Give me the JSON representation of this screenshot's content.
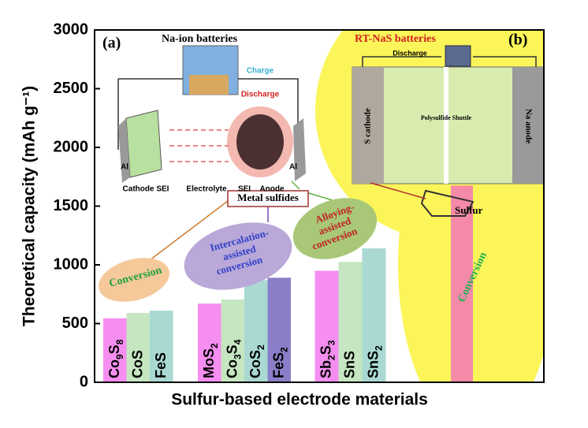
{
  "chart_data": {
    "type": "bar",
    "y_label": "Theoretical capacity (mAh g⁻¹)",
    "x_label": "Sulfur-based electrode materials",
    "categories": [
      "Co9S8",
      "CoS",
      "FeS",
      "MoS2",
      "Co3S4",
      "CoS2",
      "FeS2",
      "Sb2S3",
      "SnS",
      "SnS2",
      "Sulfur"
    ],
    "values": [
      545,
      590,
      610,
      670,
      705,
      870,
      890,
      950,
      1025,
      1140,
      1675
    ],
    "colors": [
      "#f58ef0",
      "#c6e6c2",
      "#a9d9d2",
      "#f58ef0",
      "#c6e6c2",
      "#a9d9d2",
      "#8a7ec8",
      "#f58ef0",
      "#c6e6c2",
      "#a9d9d2",
      "#f48aa8"
    ],
    "ylim": [
      0,
      3000
    ],
    "yticks": [
      0,
      500,
      1000,
      1500,
      2000,
      2500,
      3000
    ],
    "panel_labels": [
      "(a)",
      "(b)"
    ],
    "inset_titles": [
      "Na-ion batteries",
      "RT-NaS batteries"
    ],
    "metal_sulfides": "Metal sulfides",
    "mechanisms": [
      [
        "Conversion"
      ],
      [
        "Intercalation-",
        "assisted",
        "conversion"
      ],
      [
        "Alloying-",
        "assisted",
        "conversion"
      ],
      [
        "Conversion"
      ]
    ],
    "inset_a_labels": [
      "Charge",
      "Discharge",
      "Cathode SEI",
      "Electrolyte",
      "SEI",
      "Anode",
      "Al",
      "Al"
    ],
    "inset_b_labels": [
      "Discharge",
      "S cathode",
      "Na anode",
      "Polysulfide Shuttle"
    ]
  }
}
